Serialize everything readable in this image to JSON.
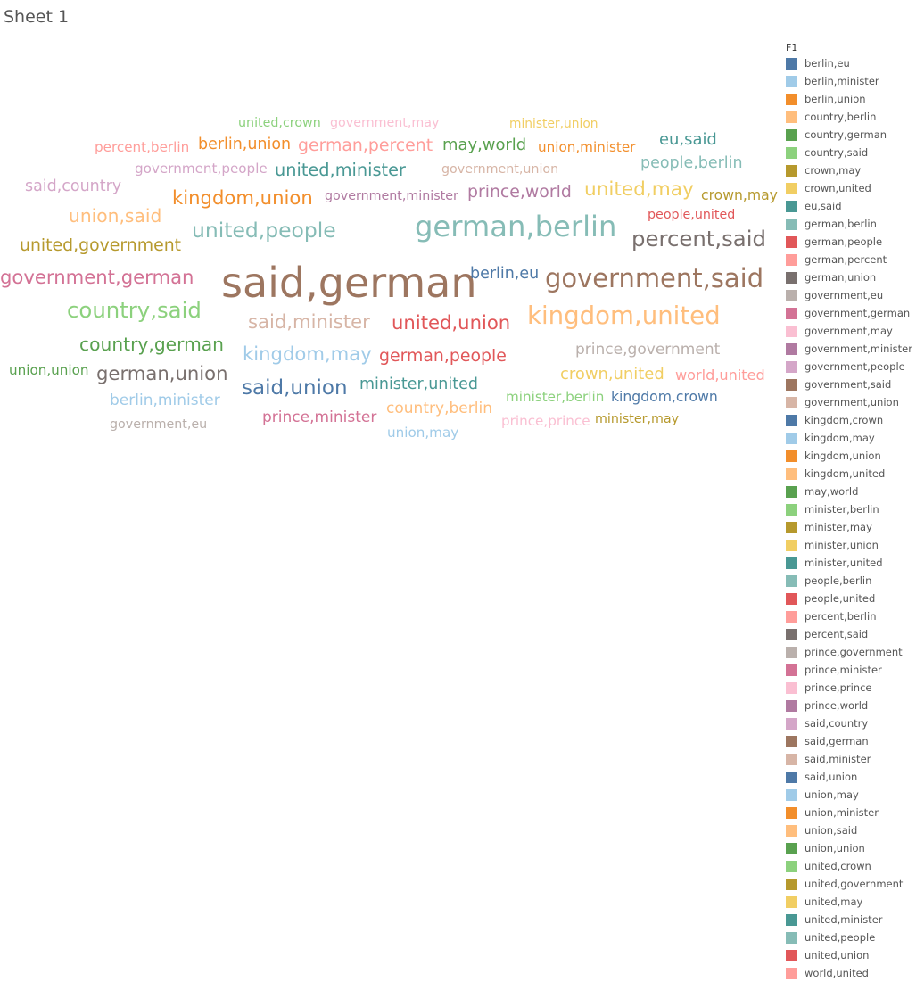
{
  "sheet": {
    "title": "Sheet 1"
  },
  "palette": {
    "berlin,eu": "#4e79a7",
    "berlin,minister": "#a0cbe8",
    "berlin,union": "#f28e2b",
    "country,berlin": "#ffbe7d",
    "country,german": "#59a14f",
    "country,said": "#8cd17d",
    "crown,may": "#b6992d",
    "crown,united": "#f1ce63",
    "eu,said": "#499894",
    "german,berlin": "#86bcb6",
    "german,people": "#e15759",
    "german,percent": "#ff9d9a",
    "german,union": "#79706e",
    "government,eu": "#bab0ac",
    "government,german": "#d37295",
    "government,may": "#fabfd2",
    "government,minister": "#b07aa1",
    "government,people": "#d4a6c8",
    "government,said": "#9d7660",
    "government,union": "#d7b5a6",
    "kingdom,crown": "#4e79a7",
    "kingdom,may": "#a0cbe8",
    "kingdom,union": "#f28e2b",
    "kingdom,united": "#ffbe7d",
    "may,world": "#59a14f",
    "minister,berlin": "#8cd17d",
    "minister,may": "#b6992d",
    "minister,union": "#f1ce63",
    "minister,united": "#499894",
    "people,berlin": "#86bcb6",
    "people,united": "#e15759",
    "percent,berlin": "#ff9d9a",
    "percent,said": "#79706e",
    "prince,government": "#bab0ac",
    "prince,minister": "#d37295",
    "prince,prince": "#fabfd2",
    "prince,world": "#b07aa1",
    "said,country": "#d4a6c8",
    "said,german": "#9d7660",
    "said,minister": "#d7b5a6",
    "said,union": "#4e79a7",
    "union,may": "#a0cbe8",
    "union,minister": "#f28e2b",
    "union,said": "#ffbe7d",
    "union,union": "#59a14f",
    "united,crown": "#8cd17d",
    "united,government": "#b6992d",
    "united,may": "#f1ce63",
    "united,minister": "#499894",
    "united,people": "#86bcb6",
    "united,union": "#e15759",
    "world,united": "#ff9d9a"
  },
  "chart_data": {
    "type": "wordcloud",
    "legend": {
      "title": "F1",
      "placement": "right",
      "entries": [
        "berlin,eu",
        "berlin,minister",
        "berlin,union",
        "country,berlin",
        "country,german",
        "country,said",
        "crown,may",
        "crown,united",
        "eu,said",
        "german,berlin",
        "german,people",
        "german,percent",
        "german,union",
        "government,eu",
        "government,german",
        "government,may",
        "government,minister",
        "government,people",
        "government,said",
        "government,union",
        "kingdom,crown",
        "kingdom,may",
        "kingdom,union",
        "kingdom,united",
        "may,world",
        "minister,berlin",
        "minister,may",
        "minister,union",
        "minister,united",
        "people,berlin",
        "people,united",
        "percent,berlin",
        "percent,said",
        "prince,government",
        "prince,minister",
        "prince,prince",
        "prince,world",
        "said,country",
        "said,german",
        "said,minister",
        "said,union",
        "union,may",
        "union,minister",
        "union,said",
        "union,union",
        "united,crown",
        "united,government",
        "united,may",
        "united,minister",
        "united,people",
        "united,union",
        "world,united"
      ]
    },
    "words": [
      {
        "text": "said,german",
        "weight": 10
      },
      {
        "text": "german,berlin",
        "weight": 7
      },
      {
        "text": "government,said",
        "weight": 6.3
      },
      {
        "text": "kingdom,united",
        "weight": 6
      },
      {
        "text": "percent,said",
        "weight": 5.3
      },
      {
        "text": "country,said",
        "weight": 5.3
      },
      {
        "text": "united,people",
        "weight": 5.1
      },
      {
        "text": "said,union",
        "weight": 5
      },
      {
        "text": "united,may",
        "weight": 4.7
      },
      {
        "text": "government,german",
        "weight": 4.6
      },
      {
        "text": "kingdom,union",
        "weight": 4.6
      },
      {
        "text": "said,minister",
        "weight": 4.6
      },
      {
        "text": "united,union",
        "weight": 4.6
      },
      {
        "text": "kingdom,may",
        "weight": 4.6
      },
      {
        "text": "german,union",
        "weight": 4.6
      },
      {
        "text": "union,said",
        "weight": 4.4
      },
      {
        "text": "country,german",
        "weight": 4.4
      },
      {
        "text": "united,minister",
        "weight": 4.2
      },
      {
        "text": "united,government",
        "weight": 4.1
      },
      {
        "text": "german,percent",
        "weight": 4.1
      },
      {
        "text": "prince,world",
        "weight": 4.1
      },
      {
        "text": "german,people",
        "weight": 4.1
      },
      {
        "text": "may,world",
        "weight": 3.9
      },
      {
        "text": "eu,said",
        "weight": 3.9
      },
      {
        "text": "crown,united",
        "weight": 3.9
      },
      {
        "text": "said,country",
        "weight": 3.8
      },
      {
        "text": "berlin,union",
        "weight": 3.8
      },
      {
        "text": "people,berlin",
        "weight": 3.8
      },
      {
        "text": "berlin,eu",
        "weight": 3.8
      },
      {
        "text": "minister,united",
        "weight": 3.8
      },
      {
        "text": "prince,government",
        "weight": 3.7
      },
      {
        "text": "berlin,minister",
        "weight": 3.7
      },
      {
        "text": "country,berlin",
        "weight": 3.7
      },
      {
        "text": "prince,minister",
        "weight": 3.7
      },
      {
        "text": "world,united",
        "weight": 3.5
      },
      {
        "text": "kingdom,crown",
        "weight": 3.4
      },
      {
        "text": "crown,may",
        "weight": 3.4
      },
      {
        "text": "union,minister",
        "weight": 3.3
      },
      {
        "text": "percent,berlin",
        "weight": 3.3
      },
      {
        "text": "government,people",
        "weight": 3.3
      },
      {
        "text": "union,union",
        "weight": 3.3
      },
      {
        "text": "minister,berlin",
        "weight": 3.3
      },
      {
        "text": "prince,prince",
        "weight": 3.3
      },
      {
        "text": "union,may",
        "weight": 3.3
      },
      {
        "text": "people,united",
        "weight": 3.1
      },
      {
        "text": "government,union",
        "weight": 3.1
      },
      {
        "text": "government,minister",
        "weight": 3.1
      },
      {
        "text": "united,crown",
        "weight": 3.1
      },
      {
        "text": "government,may",
        "weight": 3.1
      },
      {
        "text": "minister,may",
        "weight": 3.1
      },
      {
        "text": "government,eu",
        "weight": 3.1
      },
      {
        "text": "minister,union",
        "weight": 3
      }
    ]
  }
}
